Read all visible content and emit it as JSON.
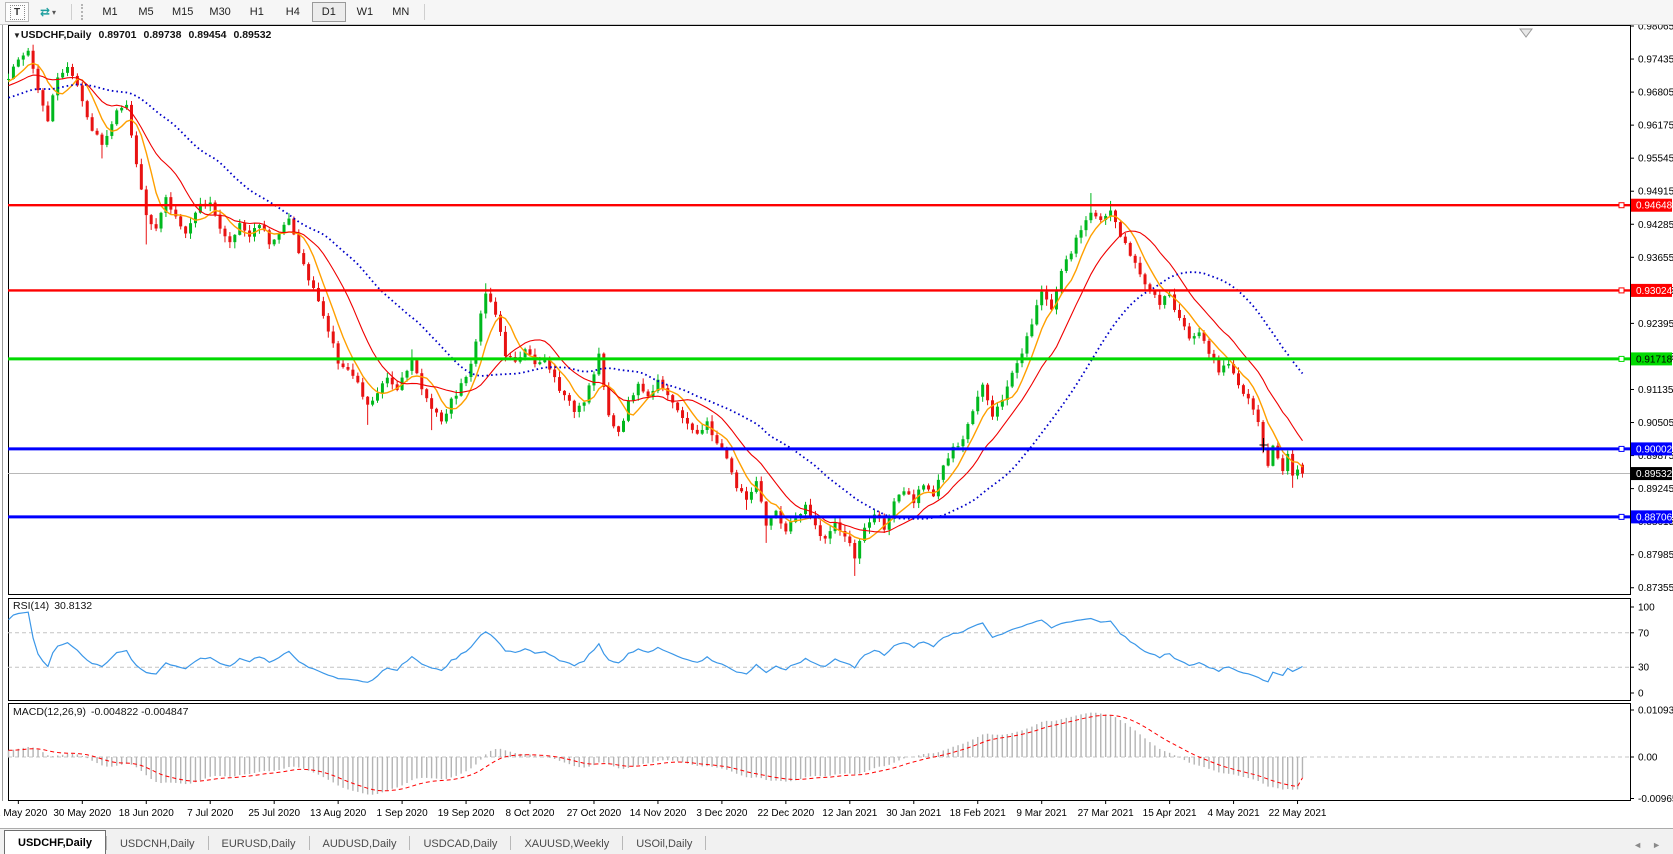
{
  "toolbar": {
    "cursor_label": "T",
    "tilt_icon": "⇄",
    "dropdown_icon": "▾",
    "timeframes": [
      "M1",
      "M5",
      "M15",
      "M30",
      "H1",
      "H4",
      "D1",
      "W1",
      "MN"
    ],
    "active_timeframe": "D1"
  },
  "chart": {
    "symbol": "USDCHF,Daily",
    "dropdown_icon": "▼",
    "ohlc": {
      "open": "0.89701",
      "high": "0.89738",
      "low": "0.89454",
      "close": "0.89532"
    }
  },
  "indicators": {
    "rsi": {
      "name": "RSI(14)",
      "value": "30.8132"
    },
    "macd": {
      "name": "MACD(12,26,9)",
      "values": "-0.004822 -0.004847"
    }
  },
  "tabs": {
    "items": [
      {
        "label": "USDCHF,Daily",
        "active": true
      },
      {
        "label": "USDCNH,Daily",
        "active": false
      },
      {
        "label": "EURUSD,Daily",
        "active": false
      },
      {
        "label": "AUDUSD,Daily",
        "active": false
      },
      {
        "label": "USDCAD,Daily",
        "active": false
      },
      {
        "label": "XAUUSD,Weekly",
        "active": false
      },
      {
        "label": "USOil,Daily",
        "active": false
      }
    ],
    "scroll_left": "◄",
    "scroll_right": "►"
  },
  "chart_data": {
    "type": "candlestick",
    "symbol": "USDCHF",
    "period": "Daily",
    "price_axis": {
      "ticks": [
        "0.98065",
        "0.97435",
        "0.96805",
        "0.96175",
        "0.95545",
        "0.94915",
        "0.94285",
        "0.93655",
        "0.93025",
        "0.92395",
        "0.91765",
        "0.91135",
        "0.90505",
        "0.89875",
        "0.89245",
        "0.88615",
        "0.87985",
        "0.87355"
      ],
      "current_price": "0.89532"
    },
    "date_axis": [
      "12 May 2020",
      "30 May 2020",
      "18 Jun 2020",
      "7 Jul 2020",
      "25 Jul 2020",
      "13 Aug 2020",
      "1 Sep 2020",
      "19 Sep 2020",
      "8 Oct 2020",
      "27 Oct 2020",
      "14 Nov 2020",
      "3 Dec 2020",
      "22 Dec 2020",
      "12 Jan 2021",
      "30 Jan 2021",
      "18 Feb 2021",
      "9 Mar 2021",
      "27 Mar 2021",
      "15 Apr 2021",
      "4 May 2021",
      "22 May 2021"
    ],
    "hlines": [
      {
        "price": 0.94648,
        "label": "0.94648",
        "color": "#fe0000",
        "width": 2.4,
        "text_color": "#ffffff",
        "name": "resistance-line-1"
      },
      {
        "price": 0.93024,
        "label": "0.93024",
        "color": "#fe0000",
        "width": 2.4,
        "text_color": "#ffffff",
        "name": "resistance-line-2"
      },
      {
        "price": 0.91718,
        "label": "0.91718",
        "color": "#00da00",
        "width": 3,
        "text_color": "#000000",
        "name": "pivot-line"
      },
      {
        "price": 0.90002,
        "label": "0.90002",
        "color": "#0000fe",
        "width": 3,
        "text_color": "#ffffff",
        "name": "support-line-1"
      },
      {
        "price": 0.88706,
        "label": "0.88706",
        "color": "#0000fe",
        "width": 3,
        "text_color": "#ffffff",
        "name": "support-line-2"
      }
    ],
    "current_price_line": {
      "price": 0.89532,
      "label": "0.89532",
      "line_color": "#b8b8b8",
      "box_color": "#000000",
      "text_color": "#ffffff"
    },
    "price_panel": {
      "n_bars": 264,
      "up_color": "#00b81e",
      "down_color": "#e81212",
      "last_bar": {
        "open": 0.89701,
        "high": 0.89738,
        "low": 0.89454,
        "close": 0.89532
      },
      "close_path": [
        [
          0,
          0.971
        ],
        [
          2,
          0.9742
        ],
        [
          4,
          0.9758
        ],
        [
          6,
          0.969
        ],
        [
          8,
          0.9628
        ],
        [
          10,
          0.9712
        ],
        [
          12,
          0.9728
        ],
        [
          14,
          0.9692
        ],
        [
          16,
          0.9628
        ],
        [
          19,
          0.9578
        ],
        [
          22,
          0.9642
        ],
        [
          24,
          0.965
        ],
        [
          26,
          0.9542
        ],
        [
          28,
          0.9448
        ],
        [
          30,
          0.9422
        ],
        [
          32,
          0.9475
        ],
        [
          34,
          0.9442
        ],
        [
          36,
          0.9415
        ],
        [
          39,
          0.9462
        ],
        [
          41,
          0.9476
        ],
        [
          43,
          0.9418
        ],
        [
          45,
          0.9392
        ],
        [
          47,
          0.9428
        ],
        [
          49,
          0.9406
        ],
        [
          51,
          0.9432
        ],
        [
          53,
          0.9396
        ],
        [
          55,
          0.9412
        ],
        [
          57,
          0.9438
        ],
        [
          59,
          0.9378
        ],
        [
          61,
          0.9322
        ],
        [
          63,
          0.9285
        ],
        [
          65,
          0.9225
        ],
        [
          67,
          0.9168
        ],
        [
          69,
          0.9152
        ],
        [
          71,
          0.9122
        ],
        [
          73,
          0.908
        ],
        [
          75,
          0.9108
        ],
        [
          77,
          0.9132
        ],
        [
          79,
          0.9118
        ],
        [
          82,
          0.9172
        ],
        [
          84,
          0.9112
        ],
        [
          86,
          0.9082
        ],
        [
          88,
          0.9055
        ],
        [
          90,
          0.9092
        ],
        [
          92,
          0.9122
        ],
        [
          94,
          0.9158
        ],
        [
          96,
          0.9262
        ],
        [
          97,
          0.93
        ],
        [
          99,
          0.9258
        ],
        [
          101,
          0.918
        ],
        [
          103,
          0.9162
        ],
        [
          105,
          0.9195
        ],
        [
          107,
          0.9158
        ],
        [
          109,
          0.9168
        ],
        [
          111,
          0.9135
        ],
        [
          113,
          0.9098
        ],
        [
          115,
          0.9075
        ],
        [
          117,
          0.9095
        ],
        [
          119,
          0.9148
        ],
        [
          120,
          0.918
        ],
        [
          122,
          0.9058
        ],
        [
          124,
          0.9032
        ],
        [
          126,
          0.9088
        ],
        [
          128,
          0.9125
        ],
        [
          130,
          0.9098
        ],
        [
          132,
          0.9135
        ],
        [
          134,
          0.9105
        ],
        [
          136,
          0.9068
        ],
        [
          138,
          0.9052
        ],
        [
          140,
          0.9025
        ],
        [
          142,
          0.9048
        ],
        [
          144,
          0.9012
        ],
        [
          146,
          0.8985
        ],
        [
          148,
          0.8925
        ],
        [
          150,
          0.8905
        ],
        [
          152,
          0.8935
        ],
        [
          154,
          0.8852
        ],
        [
          156,
          0.8878
        ],
        [
          158,
          0.8845
        ],
        [
          160,
          0.8868
        ],
        [
          162,
          0.8888
        ],
        [
          164,
          0.8852
        ],
        [
          166,
          0.8828
        ],
        [
          168,
          0.8855
        ],
        [
          170,
          0.8835
        ],
        [
          172,
          0.8795
        ],
        [
          174,
          0.8848
        ],
        [
          176,
          0.8875
        ],
        [
          178,
          0.8852
        ],
        [
          180,
          0.8895
        ],
        [
          182,
          0.8918
        ],
        [
          184,
          0.8898
        ],
        [
          186,
          0.8935
        ],
        [
          188,
          0.8915
        ],
        [
          190,
          0.8968
        ],
        [
          192,
          0.8998
        ],
        [
          194,
          0.9015
        ],
        [
          196,
          0.9075
        ],
        [
          198,
          0.9128
        ],
        [
          200,
          0.9068
        ],
        [
          202,
          0.9092
        ],
        [
          204,
          0.9148
        ],
        [
          206,
          0.9185
        ],
        [
          208,
          0.9242
        ],
        [
          210,
          0.9298
        ],
        [
          212,
          0.9272
        ],
        [
          214,
          0.9338
        ],
        [
          216,
          0.9375
        ],
        [
          218,
          0.9418
        ],
        [
          220,
          0.9455
        ],
        [
          222,
          0.9432
        ],
        [
          224,
          0.9458
        ],
        [
          226,
          0.9405
        ],
        [
          228,
          0.9372
        ],
        [
          230,
          0.9335
        ],
        [
          232,
          0.9302
        ],
        [
          234,
          0.9278
        ],
        [
          236,
          0.9292
        ],
        [
          238,
          0.9248
        ],
        [
          240,
          0.9212
        ],
        [
          242,
          0.9228
        ],
        [
          244,
          0.9185
        ],
        [
          246,
          0.9152
        ],
        [
          248,
          0.9168
        ],
        [
          250,
          0.9122
        ],
        [
          252,
          0.9092
        ],
        [
          254,
          0.9048
        ],
        [
          255,
          0.8998
        ],
        [
          256,
          0.8968
        ],
        [
          257,
          0.9008
        ],
        [
          258,
          0.8982
        ],
        [
          259,
          0.8962
        ],
        [
          260,
          0.8995
        ],
        [
          261,
          0.8945
        ],
        [
          262,
          0.8962
        ],
        [
          263,
          0.8953
        ]
      ],
      "key_wicks": [
        [
          4,
          "h",
          0.9764
        ],
        [
          19,
          "l",
          0.9554
        ],
        [
          28,
          "l",
          0.939
        ],
        [
          41,
          "h",
          0.9481
        ],
        [
          73,
          "l",
          0.9046
        ],
        [
          82,
          "h",
          0.919
        ],
        [
          86,
          "l",
          0.9036
        ],
        [
          97,
          "h",
          0.9316
        ],
        [
          120,
          "h",
          0.9192
        ],
        [
          150,
          "l",
          0.8884
        ],
        [
          154,
          "l",
          0.8821
        ],
        [
          172,
          "l",
          0.8758
        ],
        [
          220,
          "h",
          0.9488
        ],
        [
          224,
          "h",
          0.9473
        ],
        [
          261,
          "l",
          0.8926
        ]
      ],
      "moving_averages": [
        {
          "period": 6,
          "color": "#ffa000",
          "style": "solid",
          "width": 1.4
        },
        {
          "period": 14,
          "color": "#f00000",
          "style": "solid",
          "width": 1.1
        },
        {
          "period": 34,
          "color": "#0000c8",
          "style": "dotted",
          "width": 1.8
        }
      ]
    },
    "rsi_panel": {
      "period": 14,
      "current": 30.8132,
      "levels": [
        70,
        30
      ],
      "axis_ticks": [
        "100",
        "70",
        "30",
        "0"
      ],
      "line_color": "#3b97e8"
    },
    "macd_panel": {
      "fast": 12,
      "slow": 26,
      "signal": 9,
      "macd_current": -0.004822,
      "signal_current": -0.004847,
      "axis_ticks": [
        "0.010933",
        "0.00",
        "-0.009653"
      ],
      "axis_values": [
        0.010933,
        0.0,
        -0.009653
      ],
      "hist_color": "#b4b4b4",
      "signal_color": "#fe0000"
    }
  }
}
